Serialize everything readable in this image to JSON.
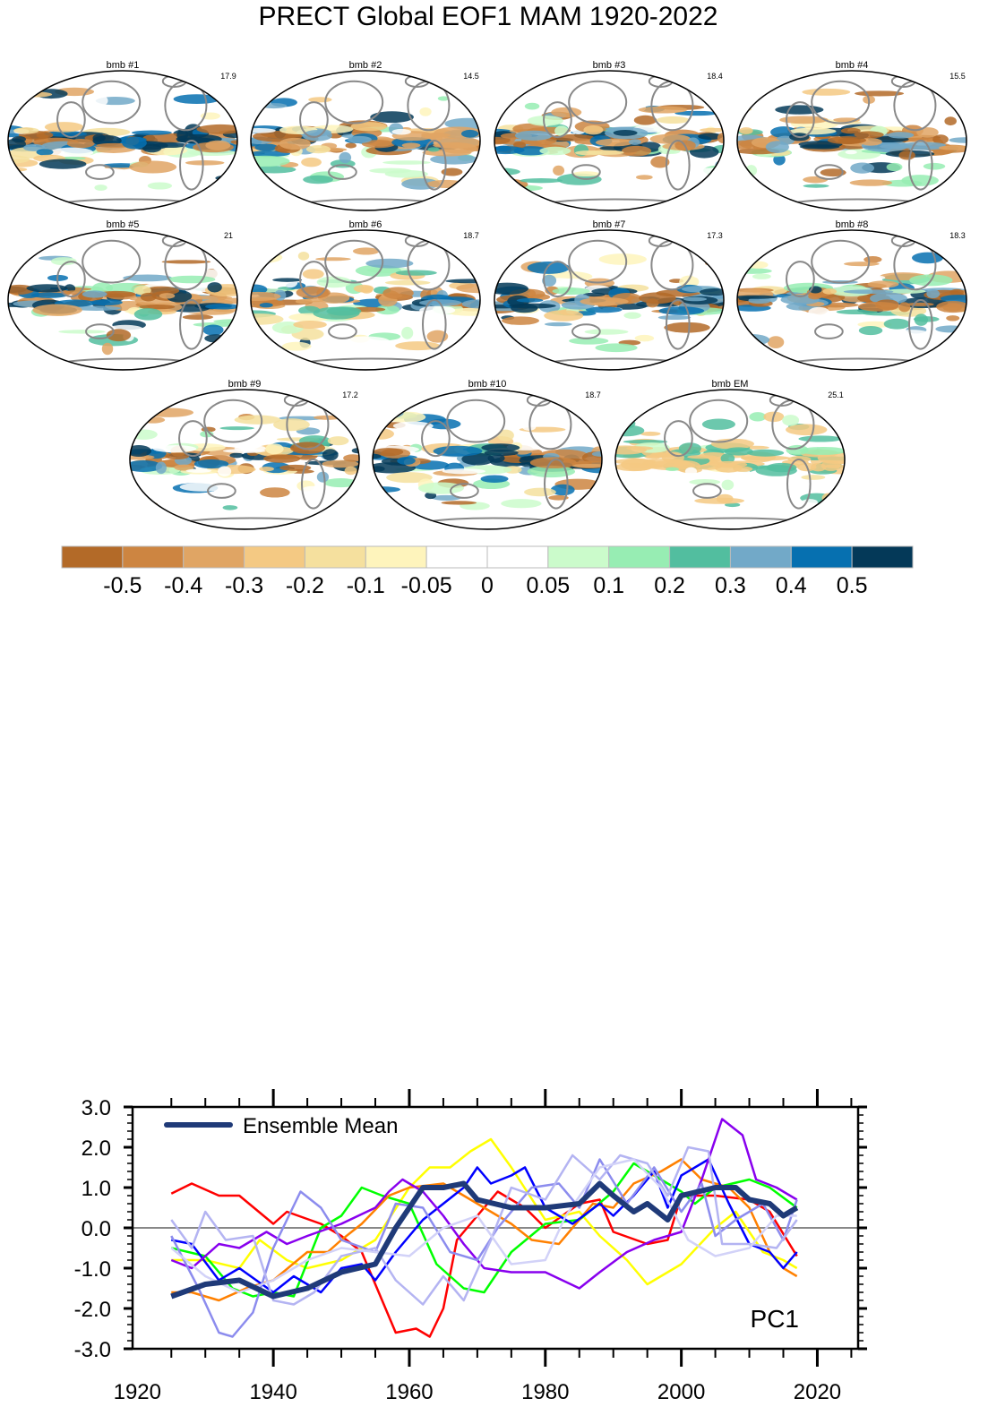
{
  "title": "PRECT Global EOF1 MAM 1920-2022",
  "maps": [
    {
      "label": "bmb #1",
      "value": "17.9"
    },
    {
      "label": "bmb #2",
      "value": "14.5"
    },
    {
      "label": "bmb #3",
      "value": "18.4"
    },
    {
      "label": "bmb #4",
      "value": "15.5"
    },
    {
      "label": "bmb #5",
      "value": "21"
    },
    {
      "label": "bmb #6",
      "value": "18.7"
    },
    {
      "label": "bmb #7",
      "value": "17.3"
    },
    {
      "label": "bmb #8",
      "value": "18.3"
    },
    {
      "label": "bmb #9",
      "value": "17.2"
    },
    {
      "label": "bmb #10",
      "value": "18.7"
    },
    {
      "label": "bmb EM",
      "value": "25.1"
    }
  ],
  "colorbar": {
    "colors": [
      "#b36a28",
      "#cd8541",
      "#e0a564",
      "#f4c983",
      "#f5e09e",
      "#fef4bc",
      "#ffffff",
      "#ffffff",
      "#cbfbcb",
      "#97edb3",
      "#52be9f",
      "#72a9c8",
      "#0670b0",
      "#043958"
    ],
    "labels": [
      "-0.5",
      "-0.4",
      "-0.3",
      "-0.2",
      "-0.1",
      "-0.05",
      "0",
      "0.05",
      "0.1",
      "0.2",
      "0.3",
      "0.4",
      "0.5"
    ]
  },
  "chart_data": {
    "type": "line",
    "title": "PC1",
    "xlabel": "",
    "ylabel": "",
    "xlim": [
      1919.3,
      2026
    ],
    "ylim": [
      -3.0,
      3.0
    ],
    "xticks": [
      "1920",
      "1940",
      "1960",
      "1980",
      "2000",
      "2020"
    ],
    "yticks": [
      "3.0",
      "2.0",
      "1.0",
      "0.0",
      "-1.0",
      "-2.0",
      "-3.0"
    ],
    "legend": {
      "entry": "Ensemble Mean",
      "placement": "top-left"
    },
    "series": [
      {
        "name": "red",
        "color": "#ff0000",
        "x": [
          1925,
          1928,
          1932,
          1935,
          1940,
          1942,
          1947,
          1950,
          1953,
          1955,
          1958,
          1961,
          1963,
          1965,
          1967,
          1970,
          1973,
          1977,
          1980,
          1985,
          1988,
          1990,
          1995,
          1998,
          2000,
          2005,
          2010,
          2013,
          2017
        ],
        "y": [
          0.85,
          1.1,
          0.8,
          0.8,
          0.1,
          0.4,
          0.1,
          -0.2,
          -0.6,
          -1.4,
          -2.6,
          -2.5,
          -2.7,
          -2.0,
          -0.3,
          0.3,
          0.9,
          0.5,
          0.0,
          0.6,
          0.7,
          -0.1,
          -0.4,
          -0.3,
          0.8,
          0.8,
          0.7,
          0.4,
          -0.7
        ]
      },
      {
        "name": "yellow",
        "color": "#ffff00",
        "x": [
          1925,
          1930,
          1935,
          1938,
          1942,
          1945,
          1950,
          1955,
          1960,
          1963,
          1966,
          1969,
          1972,
          1975,
          1980,
          1985,
          1988,
          1992,
          1995,
          2000,
          2005,
          2008,
          2012,
          2015,
          2017
        ],
        "y": [
          -0.8,
          -0.8,
          -1.0,
          -0.3,
          -0.8,
          -1.0,
          -0.8,
          -0.3,
          1.0,
          1.5,
          1.5,
          1.9,
          2.2,
          1.5,
          0.2,
          0.4,
          -0.2,
          -0.8,
          -1.4,
          -0.9,
          0.0,
          0.4,
          -0.6,
          -0.8,
          -1.0
        ]
      },
      {
        "name": "green",
        "color": "#00ff00",
        "x": [
          1925,
          1930,
          1934,
          1937,
          1940,
          1943,
          1947,
          1950,
          1953,
          1956,
          1960,
          1964,
          1968,
          1971,
          1975,
          1980,
          1985,
          1990,
          1993,
          1996,
          2000,
          2002,
          2005,
          2010,
          2013,
          2017
        ],
        "y": [
          -0.5,
          -0.7,
          -1.5,
          -1.7,
          -1.6,
          -1.7,
          0.0,
          0.3,
          1.0,
          0.8,
          0.6,
          -0.9,
          -1.5,
          -1.6,
          -0.6,
          0.1,
          0.2,
          0.9,
          1.6,
          1.3,
          0.9,
          0.6,
          1.0,
          1.2,
          1.0,
          0.5
        ]
      },
      {
        "name": "orange",
        "color": "#ff8000",
        "x": [
          1925,
          1928,
          1932,
          1936,
          1940,
          1945,
          1948,
          1950,
          1953,
          1957,
          1960,
          1965,
          1970,
          1975,
          1978,
          1982,
          1987,
          1990,
          1993,
          1997,
          2000,
          2003,
          2007,
          2010,
          2013,
          2015,
          2017
        ],
        "y": [
          -1.6,
          -1.6,
          -1.8,
          -1.5,
          -1.3,
          -0.6,
          -0.6,
          -0.3,
          0.1,
          0.8,
          1.0,
          1.1,
          0.6,
          0.1,
          -0.3,
          -0.4,
          0.6,
          0.5,
          1.1,
          1.4,
          1.7,
          1.2,
          1.0,
          0.5,
          -0.6,
          -1.0,
          -1.2
        ]
      },
      {
        "name": "blue",
        "color": "#0000ff",
        "x": [
          1925,
          1928,
          1932,
          1935,
          1940,
          1943,
          1947,
          1950,
          1953,
          1955,
          1958,
          1962,
          1965,
          1968,
          1970,
          1972,
          1975,
          1977,
          1980,
          1984,
          1988,
          1990,
          1993,
          1996,
          1998,
          2000,
          2004,
          2007,
          2010,
          2013,
          2015,
          2017
        ],
        "y": [
          -0.3,
          -0.4,
          -1.3,
          -1.0,
          -1.6,
          -1.2,
          -1.6,
          -1.0,
          -0.9,
          -1.3,
          -0.6,
          0.2,
          0.6,
          1.0,
          1.5,
          1.1,
          1.3,
          1.5,
          0.5,
          0.1,
          0.6,
          0.3,
          0.8,
          1.4,
          0.5,
          1.3,
          1.7,
          0.6,
          -0.4,
          -0.6,
          -1.0,
          -0.6
        ]
      },
      {
        "name": "purple",
        "color": "#8800ee",
        "x": [
          1925,
          1928,
          1932,
          1935,
          1939,
          1942,
          1945,
          1950,
          1955,
          1957,
          1959,
          1962,
          1965,
          1968,
          1971,
          1975,
          1980,
          1985,
          1988,
          1992,
          1996,
          2000,
          2003,
          2006,
          2009,
          2011,
          2014,
          2017
        ],
        "y": [
          -0.8,
          -1.0,
          -0.4,
          -0.5,
          -0.1,
          -0.4,
          -0.2,
          0.1,
          0.5,
          0.9,
          1.2,
          0.9,
          0.3,
          -0.4,
          -1.0,
          -1.1,
          -1.1,
          -1.5,
          -1.1,
          -0.6,
          -0.3,
          -0.1,
          1.2,
          2.7,
          2.3,
          1.2,
          1.0,
          0.7
        ]
      },
      {
        "name": "periwinkle",
        "color": "#8c8cee",
        "x": [
          1925,
          1929,
          1932,
          1934,
          1937,
          1940,
          1944,
          1947,
          1950,
          1955,
          1958,
          1962,
          1966,
          1970,
          1973,
          1978,
          1982,
          1985,
          1988,
          1992,
          1996,
          2000,
          2003,
          2005,
          2008,
          2012,
          2015,
          2017
        ],
        "y": [
          -0.2,
          -1.5,
          -2.6,
          -2.7,
          -2.1,
          -0.5,
          0.9,
          0.5,
          -0.3,
          -0.6,
          0.6,
          0.5,
          -0.6,
          -0.8,
          0.0,
          1.0,
          1.1,
          0.5,
          1.7,
          0.6,
          1.5,
          0.4,
          1.1,
          -0.2,
          0.2,
          0.6,
          -0.3,
          0.7
        ]
      },
      {
        "name": "lavender",
        "color": "#b4b4f2",
        "x": [
          1925,
          1928,
          1930,
          1933,
          1937,
          1940,
          1943,
          1946,
          1950,
          1955,
          1958,
          1962,
          1965,
          1968,
          1972,
          1975,
          1980,
          1984,
          1988,
          1991,
          1995,
          1998,
          2001,
          2004,
          2006,
          2010,
          2014,
          2017
        ],
        "y": [
          0.2,
          -0.5,
          0.4,
          -0.3,
          -0.2,
          -1.8,
          -1.9,
          -1.6,
          -0.7,
          -0.5,
          -1.3,
          -1.9,
          -1.2,
          -1.8,
          -0.3,
          1.0,
          0.7,
          1.8,
          1.2,
          1.8,
          1.6,
          0.8,
          2.0,
          1.9,
          -0.4,
          -0.4,
          -0.5,
          0.2
        ]
      },
      {
        "name": "pale-lavender",
        "color": "#d2d2f8",
        "x": [
          1925,
          1930,
          1935,
          1940,
          1945,
          1950,
          1955,
          1960,
          1965,
          1970,
          1975,
          1980,
          1983,
          1988,
          1993,
          1997,
          2001,
          2005,
          2010,
          2014,
          2017
        ],
        "y": [
          -0.5,
          -1.2,
          -1.6,
          -1.3,
          -0.8,
          -0.5,
          -0.6,
          -0.7,
          0.0,
          0.3,
          -0.9,
          -0.8,
          0.3,
          1.5,
          1.7,
          1.0,
          -0.3,
          -0.7,
          -0.5,
          0.3,
          0.3
        ]
      },
      {
        "name": "Ensemble Mean",
        "color": "#1f3a78",
        "x": [
          1925,
          1930,
          1935,
          1940,
          1945,
          1950,
          1955,
          1958,
          1962,
          1965,
          1968,
          1970,
          1975,
          1980,
          1985,
          1988,
          1990,
          1993,
          1995,
          1998,
          2000,
          2005,
          2008,
          2010,
          2013,
          2015,
          2017
        ],
        "y": [
          -1.7,
          -1.4,
          -1.3,
          -1.7,
          -1.5,
          -1.1,
          -0.9,
          0.0,
          1.0,
          1.0,
          1.1,
          0.7,
          0.5,
          0.5,
          0.6,
          1.1,
          0.8,
          0.4,
          0.6,
          0.2,
          0.8,
          1.0,
          1.0,
          0.7,
          0.6,
          0.3,
          0.5
        ]
      }
    ]
  }
}
